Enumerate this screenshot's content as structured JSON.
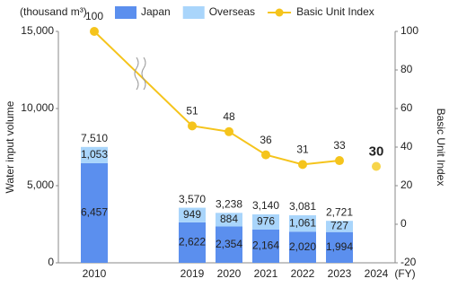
{
  "chart_data": {
    "type": "bar_line",
    "unit_label": "(thousand m³)",
    "y_label": "Water input volume",
    "y2_label": "Basic Unit Index",
    "x_unit": "(FY)",
    "categories": [
      "2010",
      "2019",
      "2020",
      "2021",
      "2022",
      "2023",
      "2024"
    ],
    "axis_break": true,
    "series": [
      {
        "name": "Japan",
        "color": "#5b8fee",
        "values": [
          6457,
          2622,
          2354,
          2164,
          2020,
          1994,
          null
        ],
        "value_labels": [
          "6,457",
          "2,622",
          "2,354",
          "2,164",
          "2,020",
          "1,994",
          null
        ]
      },
      {
        "name": "Overseas",
        "color": "#a9d5fb",
        "values": [
          1053,
          949,
          884,
          976,
          1061,
          727,
          null
        ],
        "value_labels": [
          "1,053",
          "949",
          "884",
          "976",
          "1,061",
          "727",
          null
        ]
      },
      {
        "name": "Basic Unit Index",
        "color": "#f5c41c",
        "axis": "y2",
        "type": "line",
        "values": [
          100,
          51,
          48,
          36,
          31,
          33,
          30
        ]
      }
    ],
    "totals": {
      "values": [
        7510,
        3570,
        3238,
        3140,
        3081,
        2721,
        null
      ],
      "value_labels": [
        "7,510",
        "3,570",
        "3,238",
        "3,140",
        "3,081",
        "2,721",
        null
      ]
    },
    "projected_last": true,
    "ylim": [
      0,
      15000
    ],
    "yticks": [
      0,
      {
        "value": 5000,
        "label": "5,000"
      },
      {
        "value": 10000,
        "label": "10,000"
      },
      {
        "value": 15000,
        "label": "15,000"
      }
    ],
    "y2lim": [
      -20,
      100
    ],
    "y2ticks": [
      -20,
      0,
      20,
      40,
      60,
      80,
      100
    ],
    "grid": false,
    "legend": "top"
  }
}
